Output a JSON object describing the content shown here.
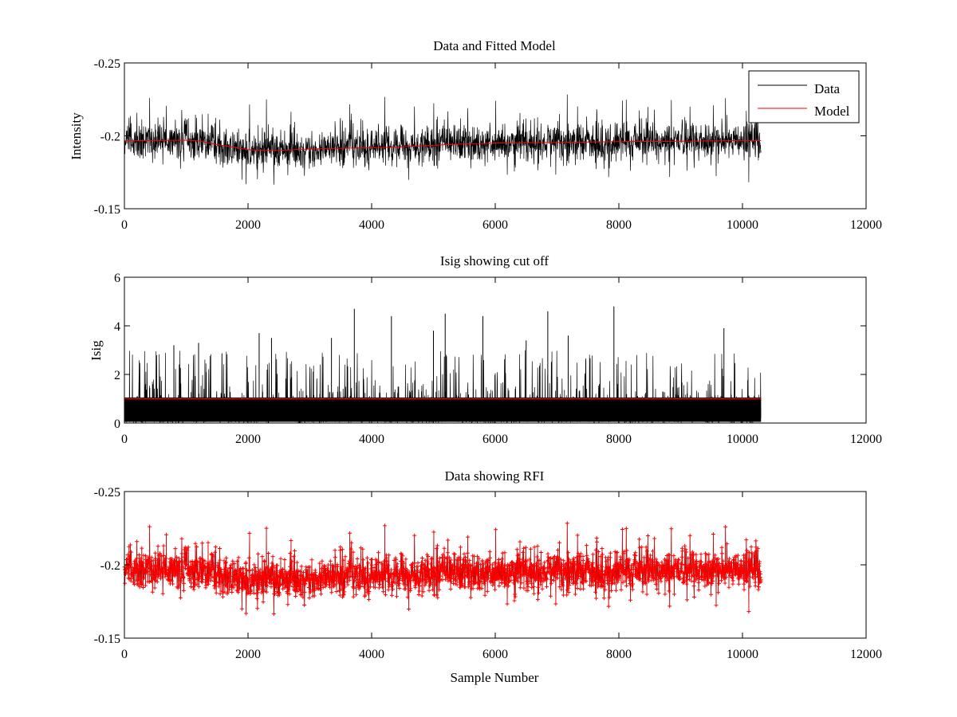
{
  "chart_data": [
    {
      "type": "line",
      "title": "Data and Fitted Model",
      "xlabel": "",
      "ylabel": "Intensity",
      "xlim": [
        0,
        12000
      ],
      "ylim": [
        -0.25,
        -0.15
      ],
      "xticks": [
        "0",
        "2000",
        "4000",
        "6000",
        "8000",
        "10000",
        "12000"
      ],
      "yticks": [
        "-0.25",
        "-0.2",
        "-0.15"
      ],
      "ytick_values": [
        -0.25,
        -0.2,
        -0.15
      ],
      "y_reversed": true,
      "legend": {
        "placement": "top-right",
        "entries": [
          "Data",
          "Model"
        ]
      },
      "series": [
        {
          "name": "Data",
          "color": "#000000",
          "style": "noisy-line",
          "n_samples": 10300,
          "amplitude": 0.016,
          "follows": "Model"
        },
        {
          "name": "Model",
          "color": "#ff0000",
          "style": "line",
          "x": [
            0,
            500,
            1000,
            1200,
            1500,
            1800,
            2000,
            2300,
            2500,
            3000,
            3500,
            4000,
            4500,
            5000,
            5500,
            6000,
            6500,
            7000,
            7500,
            8000,
            8500,
            9000,
            9500,
            10000,
            10300
          ],
          "y": [
            -0.1965,
            -0.1968,
            -0.197,
            -0.1965,
            -0.194,
            -0.192,
            -0.1905,
            -0.19,
            -0.19,
            -0.191,
            -0.1915,
            -0.1918,
            -0.1925,
            -0.1935,
            -0.1945,
            -0.195,
            -0.1952,
            -0.1955,
            -0.1958,
            -0.196,
            -0.1962,
            -0.1963,
            -0.1965,
            -0.1968,
            -0.1968
          ]
        }
      ]
    },
    {
      "type": "line",
      "title": "Isig showing cut off",
      "xlabel": "",
      "ylabel": "Isig",
      "xlim": [
        0,
        12000
      ],
      "ylim": [
        0,
        6
      ],
      "xticks": [
        "0",
        "2000",
        "4000",
        "6000",
        "8000",
        "10000",
        "12000"
      ],
      "yticks": [
        "0",
        "2",
        "4",
        "6"
      ],
      "ytick_values": [
        0,
        2,
        4,
        6
      ],
      "series": [
        {
          "name": "",
          "color": "#000000",
          "style": "noisy-line",
          "n_samples": 10300,
          "typical_max": 1.2
        },
        {
          "name": "",
          "color": "#ff0000",
          "style": "hline",
          "x": [
            0,
            10300
          ],
          "y": [
            1,
            1
          ]
        }
      ],
      "peaks": [
        {
          "x": 3720,
          "y": 4.7
        },
        {
          "x": 7920,
          "y": 4.8
        },
        {
          "x": 6850,
          "y": 4.6
        },
        {
          "x": 4320,
          "y": 4.4
        },
        {
          "x": 5190,
          "y": 4.5
        },
        {
          "x": 5800,
          "y": 4.4
        },
        {
          "x": 9700,
          "y": 3.9
        },
        {
          "x": 2180,
          "y": 3.7
        },
        {
          "x": 3350,
          "y": 3.5
        },
        {
          "x": 2380,
          "y": 3.5
        },
        {
          "x": 5000,
          "y": 3.8
        },
        {
          "x": 6500,
          "y": 3.4
        },
        {
          "x": 7180,
          "y": 3.6
        },
        {
          "x": 800,
          "y": 3.2
        },
        {
          "x": 1200,
          "y": 3.3
        }
      ]
    },
    {
      "type": "line",
      "title": "Data showing RFI",
      "xlabel": "Sample Number",
      "ylabel": "",
      "xlim": [
        0,
        12000
      ],
      "ylim": [
        -0.25,
        -0.15
      ],
      "xticks": [
        "0",
        "2000",
        "4000",
        "6000",
        "8000",
        "10000",
        "12000"
      ],
      "yticks": [
        "-0.25",
        "-0.2",
        "-0.15"
      ],
      "ytick_values": [
        -0.25,
        -0.2,
        -0.15
      ],
      "y_reversed": true,
      "series": [
        {
          "name": "",
          "color": "#000000",
          "style": "noisy-line",
          "n_samples": 10300
        },
        {
          "name": "",
          "color": "#ff0000",
          "style": "markers",
          "marker": "plus",
          "n_samples": 10300
        }
      ]
    }
  ]
}
